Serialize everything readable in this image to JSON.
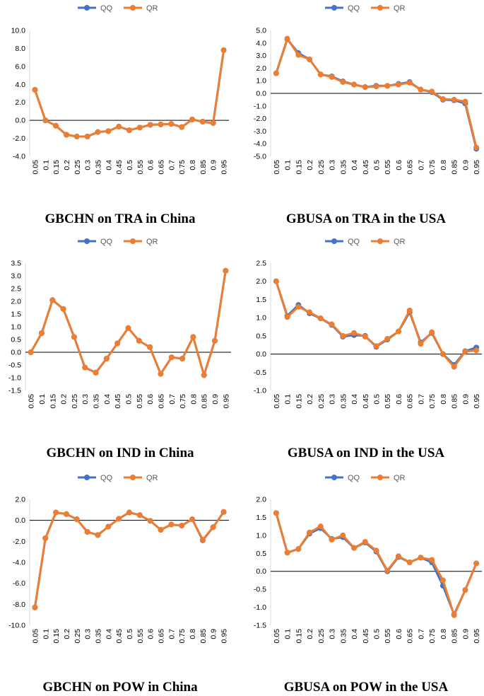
{
  "colors": {
    "qq": "#4472C4",
    "qr": "#ED7D31",
    "axis": "#000000",
    "tick_text": "#000000"
  },
  "chart_data": [
    {
      "type": "line",
      "title": "GBCHN on TRA in China",
      "categories": [
        "0.05",
        "0.1",
        "0.15",
        "0.2",
        "0.25",
        "0.3",
        "0.35",
        "0.4",
        "0.45",
        "0.5",
        "0.55",
        "0.6",
        "0.65",
        "0.7",
        "0.75",
        "0.8",
        "0.85",
        "0.9",
        "0.95"
      ],
      "ylim": [
        -4,
        10
      ],
      "yticks": [
        -4,
        -2,
        0,
        2,
        4,
        6,
        8,
        10
      ],
      "ytick_labels": [
        "-4.0",
        "-2.0",
        "0.0",
        "2.0",
        "4.0",
        "6.0",
        "8.0",
        "10.0"
      ],
      "legend": "top",
      "series": [
        {
          "name": "QQ",
          "values": [
            3.4,
            0.0,
            -0.6,
            -1.6,
            -1.8,
            -1.8,
            -1.3,
            -1.2,
            -0.7,
            -1.1,
            -0.8,
            -0.5,
            -0.45,
            -0.4,
            -0.75,
            0.1,
            -0.15,
            -0.3,
            7.8
          ]
        },
        {
          "name": "QR",
          "values": [
            3.4,
            0.0,
            -0.6,
            -1.6,
            -1.8,
            -1.8,
            -1.3,
            -1.2,
            -0.7,
            -1.1,
            -0.8,
            -0.5,
            -0.45,
            -0.4,
            -0.75,
            0.1,
            -0.15,
            -0.3,
            7.8
          ]
        }
      ]
    },
    {
      "type": "line",
      "title": "GBUSA on TRA in the USA",
      "categories": [
        "0.05",
        "0.1",
        "0.15",
        "0.2",
        "0.25",
        "0.3",
        "0.35",
        "0.4",
        "0.45",
        "0.5",
        "0.55",
        "0.6",
        "0.65",
        "0.7",
        "0.75",
        "0.8",
        "0.85",
        "0.9",
        "0.95"
      ],
      "ylim": [
        -5,
        5
      ],
      "yticks": [
        -5,
        -4,
        -3,
        -2,
        -1,
        0,
        1,
        2,
        3,
        4,
        5
      ],
      "ytick_labels": [
        "-5.0",
        "-4.0",
        "-3.0",
        "-2.0",
        "-1.0",
        "0.0",
        "1.0",
        "2.0",
        "3.0",
        "4.0",
        "5.0"
      ],
      "legend": "top",
      "series": [
        {
          "name": "QQ",
          "values": [
            1.6,
            4.3,
            3.2,
            2.7,
            1.5,
            1.35,
            0.95,
            0.7,
            0.5,
            0.6,
            0.6,
            0.75,
            0.9,
            0.3,
            0.1,
            -0.5,
            -0.55,
            -0.8,
            -4.4
          ]
        },
        {
          "name": "QR",
          "values": [
            1.6,
            4.35,
            3.05,
            2.7,
            1.5,
            1.3,
            0.9,
            0.7,
            0.5,
            0.55,
            0.6,
            0.7,
            0.85,
            0.3,
            0.15,
            -0.45,
            -0.5,
            -0.65,
            -4.3
          ]
        }
      ]
    },
    {
      "type": "line",
      "title": "GBCHN on IND in China",
      "categories": [
        "0.05",
        "0.1",
        "0.15",
        "0.2",
        "0.25",
        "0.3",
        "0.35",
        "0.4",
        "0.45",
        "0.5",
        "0.55",
        "0.6",
        "0.65",
        "0.7",
        "0.75",
        "0.8",
        "0.85",
        "0.9",
        "0.95"
      ],
      "ylim": [
        -1.5,
        3.5
      ],
      "yticks": [
        -1.5,
        -1.0,
        -0.5,
        0.0,
        0.5,
        1.0,
        1.5,
        2.0,
        2.5,
        3.0,
        3.5
      ],
      "ytick_labels": [
        "-1.5",
        "-1.0",
        "-0.5",
        "0.0",
        "0.5",
        "1.0",
        "1.5",
        "2.0",
        "2.5",
        "3.0",
        "3.5"
      ],
      "legend": "top",
      "series": [
        {
          "name": "QQ",
          "values": [
            0.0,
            0.75,
            2.05,
            1.7,
            0.6,
            -0.6,
            -0.8,
            -0.25,
            0.35,
            0.95,
            0.45,
            0.2,
            -0.85,
            -0.2,
            -0.25,
            0.6,
            -0.9,
            0.45,
            3.2
          ]
        },
        {
          "name": "QR",
          "values": [
            0.0,
            0.75,
            2.05,
            1.7,
            0.6,
            -0.6,
            -0.8,
            -0.25,
            0.35,
            0.95,
            0.45,
            0.2,
            -0.85,
            -0.2,
            -0.25,
            0.6,
            -0.9,
            0.45,
            3.2
          ]
        }
      ]
    },
    {
      "type": "line",
      "title": "GBUSA on IND in the USA",
      "categories": [
        "0.05",
        "0.1",
        "0.15",
        "0.2",
        "0.25",
        "0.3",
        "0.35",
        "0.4",
        "0.45",
        "0.5",
        "0.55",
        "0.6",
        "0.65",
        "0.7",
        "0.75",
        "0.8",
        "0.85",
        "0.9",
        "0.95"
      ],
      "ylim": [
        -1.0,
        2.5
      ],
      "yticks": [
        -1.0,
        -0.5,
        0.0,
        0.5,
        1.0,
        1.5,
        2.0,
        2.5
      ],
      "ytick_labels": [
        "-1.0",
        "-0.5",
        "0.0",
        "0.5",
        "1.0",
        "1.5",
        "2.0",
        "2.5"
      ],
      "legend": "top",
      "series": [
        {
          "name": "QQ",
          "values": [
            2.0,
            1.05,
            1.35,
            1.12,
            0.98,
            0.8,
            0.48,
            0.52,
            0.5,
            0.2,
            0.4,
            0.62,
            1.15,
            0.32,
            0.58,
            0.0,
            -0.3,
            0.08,
            0.18
          ]
        },
        {
          "name": "QR",
          "values": [
            2.0,
            1.02,
            1.3,
            1.15,
            0.98,
            0.82,
            0.5,
            0.58,
            0.48,
            0.22,
            0.42,
            0.62,
            1.2,
            0.28,
            0.6,
            0.0,
            -0.35,
            0.07,
            0.1
          ]
        }
      ]
    },
    {
      "type": "line",
      "title": "GBCHN on POW in China",
      "categories": [
        "0.05",
        "0.1",
        "0.15",
        "0.2",
        "0.25",
        "0.3",
        "0.35",
        "0.4",
        "0.45",
        "0.5",
        "0.55",
        "0.6",
        "0.65",
        "0.7",
        "0.75",
        "0.8",
        "0.85",
        "0.9",
        "0.95"
      ],
      "ylim": [
        -10,
        2
      ],
      "yticks": [
        -10,
        -8,
        -6,
        -4,
        -2,
        0,
        2
      ],
      "ytick_labels": [
        "-10.0",
        "-8.0",
        "-6.0",
        "-4.0",
        "-2.0",
        "0.0",
        "2.0"
      ],
      "legend": "top",
      "series": [
        {
          "name": "QQ",
          "values": [
            -8.3,
            -1.7,
            0.75,
            0.6,
            0.1,
            -1.1,
            -1.4,
            -0.6,
            0.15,
            0.75,
            0.5,
            -0.05,
            -0.9,
            -0.4,
            -0.5,
            0.1,
            -1.9,
            -0.65,
            0.8
          ]
        },
        {
          "name": "QR",
          "values": [
            -8.3,
            -1.7,
            0.75,
            0.6,
            0.1,
            -1.1,
            -1.4,
            -0.6,
            0.15,
            0.75,
            0.5,
            -0.05,
            -0.9,
            -0.4,
            -0.5,
            0.1,
            -1.85,
            -0.65,
            0.8
          ]
        }
      ]
    },
    {
      "type": "line",
      "title": "GBUSA on POW in the USA",
      "categories": [
        "0.05",
        "0.1",
        "0.15",
        "0.2",
        "0.25",
        "0.3",
        "0.35",
        "0.4",
        "0.45",
        "0.5",
        "0.55",
        "0.6",
        "0.65",
        "0.7",
        "0.75",
        "0.8",
        "0.85",
        "0.9",
        "0.95"
      ],
      "ylim": [
        -1.5,
        2.0
      ],
      "yticks": [
        -1.5,
        -1.0,
        -0.5,
        0.0,
        0.5,
        1.0,
        1.5,
        2.0
      ],
      "ytick_labels": [
        "-1.5",
        "-1.0",
        "-0.5",
        "0.0",
        "0.5",
        "1.0",
        "1.5",
        "2.0"
      ],
      "legend": "top",
      "series": [
        {
          "name": "QQ",
          "values": [
            1.62,
            0.52,
            0.62,
            1.05,
            1.2,
            0.9,
            0.95,
            0.65,
            0.8,
            0.55,
            0.0,
            0.4,
            0.25,
            0.38,
            0.25,
            -0.4,
            -1.2,
            -0.52,
            0.22
          ]
        },
        {
          "name": "QR",
          "values": [
            1.62,
            0.52,
            0.62,
            1.08,
            1.25,
            0.88,
            1.0,
            0.65,
            0.82,
            0.58,
            0.02,
            0.42,
            0.25,
            0.38,
            0.32,
            -0.25,
            -1.22,
            -0.52,
            0.22
          ]
        }
      ]
    }
  ]
}
